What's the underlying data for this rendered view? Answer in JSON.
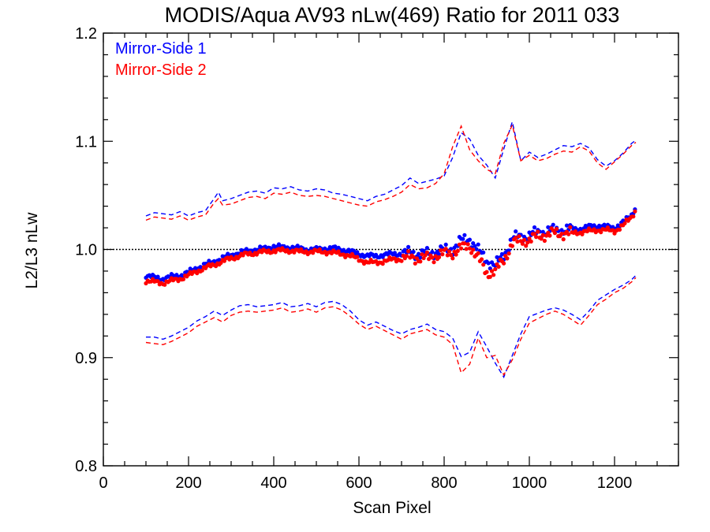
{
  "chart_data": {
    "type": "scatter",
    "title": "MODIS/Aqua AV93 nLw(469) Ratio for 2011 033",
    "xlabel": "Scan Pixel",
    "ylabel": "L2/L3 nLw",
    "xlim": [
      0,
      1350
    ],
    "ylim": [
      0.8,
      1.2
    ],
    "xticks": [
      "0",
      "200",
      "400",
      "600",
      "800",
      "1000",
      "1200"
    ],
    "yticks": [
      "0.8",
      "0.9",
      "1.0",
      "1.1",
      "1.2"
    ],
    "legend_position": "top-left",
    "reference_line": {
      "y": 1.0,
      "style": "dotted",
      "color": "#000000"
    },
    "series": [
      {
        "name": "Mirror-Side 1",
        "color": "#0000ff",
        "mean": {
          "x": [
            100,
            120,
            140,
            160,
            180,
            200,
            220,
            240,
            260,
            280,
            300,
            320,
            340,
            360,
            380,
            400,
            420,
            440,
            460,
            480,
            500,
            520,
            540,
            560,
            580,
            600,
            620,
            640,
            660,
            680,
            700,
            720,
            740,
            760,
            780,
            800,
            820,
            840,
            860,
            880,
            900,
            920,
            940,
            960,
            980,
            1000,
            1020,
            1040,
            1060,
            1080,
            1100,
            1120,
            1140,
            1160,
            1180,
            1200,
            1220,
            1240,
            1250
          ],
          "y": [
            0.976,
            0.974,
            0.973,
            0.975,
            0.976,
            0.979,
            0.983,
            0.986,
            0.989,
            0.992,
            0.995,
            0.997,
            0.999,
            1.0,
            1.001,
            1.003,
            1.002,
            1.002,
            1.001,
            1.0,
            1.0,
            1.001,
            1.001,
            1.0,
            0.998,
            0.996,
            0.994,
            0.994,
            0.995,
            0.996,
            0.996,
            0.997,
            0.996,
            0.996,
            0.998,
            0.999,
            1.001,
            1.008,
            1.01,
            0.999,
            0.99,
            0.985,
            0.995,
            1.01,
            1.012,
            1.013,
            1.016,
            1.017,
            1.018,
            1.018,
            1.019,
            1.019,
            1.021,
            1.022,
            1.021,
            1.02,
            1.025,
            1.032,
            1.04
          ]
        },
        "upper": {
          "x": [
            100,
            120,
            140,
            160,
            180,
            200,
            220,
            240,
            260,
            270,
            280,
            300,
            320,
            340,
            360,
            380,
            400,
            420,
            440,
            460,
            480,
            500,
            520,
            540,
            560,
            580,
            600,
            620,
            640,
            660,
            680,
            700,
            720,
            740,
            760,
            780,
            800,
            820,
            840,
            860,
            880,
            900,
            920,
            940,
            960,
            980,
            1000,
            1020,
            1040,
            1060,
            1080,
            1100,
            1120,
            1140,
            1160,
            1180,
            1200,
            1220,
            1240,
            1250
          ],
          "y": [
            1.031,
            1.034,
            1.033,
            1.032,
            1.035,
            1.031,
            1.034,
            1.036,
            1.047,
            1.053,
            1.045,
            1.047,
            1.05,
            1.053,
            1.054,
            1.052,
            1.057,
            1.056,
            1.058,
            1.055,
            1.054,
            1.056,
            1.055,
            1.052,
            1.051,
            1.049,
            1.047,
            1.045,
            1.049,
            1.051,
            1.055,
            1.059,
            1.066,
            1.061,
            1.063,
            1.065,
            1.068,
            1.085,
            1.108,
            1.102,
            1.087,
            1.078,
            1.066,
            1.093,
            1.118,
            1.082,
            1.09,
            1.085,
            1.088,
            1.092,
            1.096,
            1.095,
            1.098,
            1.094,
            1.083,
            1.077,
            1.082,
            1.089,
            1.098,
            1.101
          ]
        },
        "lower": {
          "x": [
            100,
            120,
            140,
            160,
            180,
            200,
            220,
            240,
            260,
            280,
            300,
            320,
            340,
            360,
            380,
            400,
            420,
            440,
            460,
            480,
            500,
            520,
            540,
            560,
            580,
            600,
            620,
            640,
            660,
            680,
            700,
            720,
            740,
            760,
            780,
            800,
            820,
            840,
            860,
            880,
            900,
            920,
            940,
            960,
            980,
            1000,
            1020,
            1040,
            1060,
            1080,
            1100,
            1120,
            1140,
            1160,
            1180,
            1200,
            1220,
            1240,
            1250
          ],
          "y": [
            0.919,
            0.919,
            0.917,
            0.92,
            0.924,
            0.928,
            0.934,
            0.938,
            0.943,
            0.939,
            0.944,
            0.948,
            0.949,
            0.947,
            0.948,
            0.949,
            0.951,
            0.947,
            0.948,
            0.95,
            0.947,
            0.951,
            0.952,
            0.949,
            0.943,
            0.935,
            0.93,
            0.933,
            0.929,
            0.925,
            0.922,
            0.926,
            0.928,
            0.931,
            0.926,
            0.924,
            0.918,
            0.901,
            0.905,
            0.924,
            0.91,
            0.895,
            0.882,
            0.902,
            0.922,
            0.938,
            0.941,
            0.944,
            0.946,
            0.944,
            0.94,
            0.935,
            0.943,
            0.953,
            0.958,
            0.963,
            0.967,
            0.972,
            0.976
          ]
        }
      },
      {
        "name": "Mirror-Side 2",
        "color": "#ff0000",
        "mean": {
          "x": [
            100,
            120,
            140,
            160,
            180,
            200,
            220,
            240,
            260,
            280,
            300,
            320,
            340,
            360,
            380,
            400,
            420,
            440,
            460,
            480,
            500,
            520,
            540,
            560,
            580,
            600,
            620,
            640,
            660,
            680,
            700,
            720,
            740,
            760,
            780,
            800,
            820,
            840,
            860,
            880,
            900,
            920,
            940,
            960,
            980,
            1000,
            1020,
            1040,
            1060,
            1080,
            1100,
            1120,
            1140,
            1160,
            1180,
            1200,
            1220,
            1240,
            1250
          ],
          "y": [
            0.971,
            0.97,
            0.969,
            0.971,
            0.973,
            0.976,
            0.98,
            0.983,
            0.986,
            0.989,
            0.992,
            0.994,
            0.996,
            0.997,
            0.998,
            0.999,
            0.999,
            0.999,
            0.998,
            0.998,
            0.998,
            0.998,
            0.997,
            0.996,
            0.994,
            0.991,
            0.988,
            0.988,
            0.989,
            0.991,
            0.991,
            0.993,
            0.992,
            0.992,
            0.994,
            0.996,
            0.997,
            1.001,
            1.004,
            0.992,
            0.978,
            0.98,
            0.99,
            1.006,
            1.008,
            1.009,
            1.012,
            1.014,
            1.015,
            1.015,
            1.015,
            1.016,
            1.017,
            1.018,
            1.018,
            1.017,
            1.022,
            1.03,
            1.037
          ]
        },
        "upper": {
          "x": [
            100,
            120,
            140,
            160,
            180,
            200,
            220,
            240,
            260,
            270,
            280,
            300,
            320,
            340,
            360,
            380,
            400,
            420,
            440,
            460,
            480,
            500,
            520,
            540,
            560,
            580,
            600,
            620,
            640,
            660,
            680,
            700,
            720,
            740,
            760,
            780,
            800,
            820,
            840,
            860,
            880,
            900,
            920,
            940,
            960,
            980,
            1000,
            1020,
            1040,
            1060,
            1080,
            1100,
            1120,
            1140,
            1160,
            1180,
            1200,
            1220,
            1240,
            1250
          ],
          "y": [
            1.027,
            1.03,
            1.029,
            1.028,
            1.031,
            1.027,
            1.03,
            1.032,
            1.043,
            1.047,
            1.041,
            1.042,
            1.045,
            1.048,
            1.049,
            1.047,
            1.052,
            1.051,
            1.053,
            1.05,
            1.049,
            1.05,
            1.049,
            1.047,
            1.045,
            1.043,
            1.041,
            1.04,
            1.044,
            1.046,
            1.049,
            1.053,
            1.06,
            1.056,
            1.057,
            1.061,
            1.07,
            1.095,
            1.114,
            1.092,
            1.082,
            1.074,
            1.07,
            1.098,
            1.115,
            1.082,
            1.087,
            1.082,
            1.084,
            1.088,
            1.091,
            1.09,
            1.095,
            1.091,
            1.08,
            1.074,
            1.081,
            1.088,
            1.096,
            1.099
          ]
        },
        "lower": {
          "x": [
            100,
            120,
            140,
            160,
            180,
            200,
            220,
            240,
            260,
            280,
            300,
            320,
            340,
            360,
            380,
            400,
            420,
            440,
            460,
            480,
            500,
            520,
            540,
            560,
            580,
            600,
            620,
            640,
            660,
            680,
            700,
            720,
            740,
            760,
            780,
            800,
            820,
            840,
            860,
            880,
            900,
            920,
            940,
            960,
            980,
            1000,
            1020,
            1040,
            1060,
            1080,
            1100,
            1120,
            1140,
            1160,
            1180,
            1200,
            1220,
            1240,
            1250
          ],
          "y": [
            0.914,
            0.913,
            0.912,
            0.915,
            0.919,
            0.923,
            0.929,
            0.933,
            0.937,
            0.933,
            0.939,
            0.942,
            0.943,
            0.942,
            0.943,
            0.944,
            0.946,
            0.942,
            0.943,
            0.945,
            0.942,
            0.946,
            0.947,
            0.944,
            0.938,
            0.931,
            0.926,
            0.929,
            0.925,
            0.921,
            0.917,
            0.922,
            0.924,
            0.926,
            0.921,
            0.919,
            0.912,
            0.886,
            0.894,
            0.918,
            0.9,
            0.902,
            0.884,
            0.898,
            0.917,
            0.932,
            0.936,
            0.94,
            0.943,
            0.94,
            0.935,
            0.93,
            0.939,
            0.949,
            0.954,
            0.96,
            0.964,
            0.97,
            0.974
          ]
        }
      }
    ]
  }
}
